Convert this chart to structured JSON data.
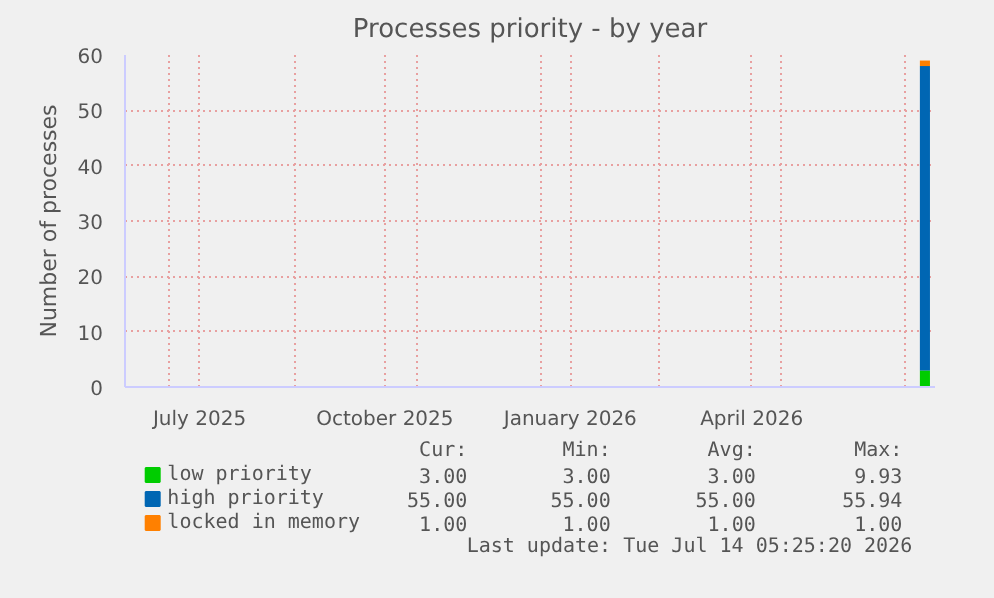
{
  "chart_data": {
    "type": "bar",
    "stacked": true,
    "title": "Processes priority - by year",
    "ylabel": "Number of processes",
    "x": [
      "2026-07-11"
    ],
    "series": [
      {
        "name": "low priority",
        "color": "#00cc00",
        "values": [
          3
        ]
      },
      {
        "name": "high priority",
        "color": "#0066b3",
        "values": [
          55
        ]
      },
      {
        "name": "locked in memory",
        "color": "#ff8000",
        "values": [
          1
        ]
      }
    ],
    "xlim": [
      "2025-06-09",
      "2026-07-16"
    ],
    "xticks": [
      {
        "value": "2025-07-01",
        "label": null
      },
      {
        "value": "2025-07-16",
        "label": "July 2025"
      },
      {
        "value": "2025-09-01",
        "label": null
      },
      {
        "value": "2025-10-16",
        "label": "October 2025"
      },
      {
        "value": "2025-11-01",
        "label": null
      },
      {
        "value": "2026-01-01",
        "label": null
      },
      {
        "value": "2026-01-16",
        "label": "January 2026"
      },
      {
        "value": "2026-03-01",
        "label": null
      },
      {
        "value": "2026-04-16",
        "label": "April 2026"
      },
      {
        "value": "2026-05-01",
        "label": null
      },
      {
        "value": "2026-07-01",
        "label": null
      }
    ],
    "ylim": [
      0,
      60
    ],
    "yticks": [
      0,
      10,
      20,
      30,
      40,
      50,
      60
    ],
    "grid": true,
    "legend": "bottom",
    "annotations": [
      "Cur:",
      "Min:",
      "Avg:",
      "Max:",
      "3.00",
      "3.00",
      "3.00",
      "9.93",
      "55.00",
      "55.00",
      "55.00",
      "55.94",
      "1.00",
      "1.00",
      "1.00",
      "1.00",
      "Last update: Tue Jul 14 05:25:20 2026"
    ]
  }
}
